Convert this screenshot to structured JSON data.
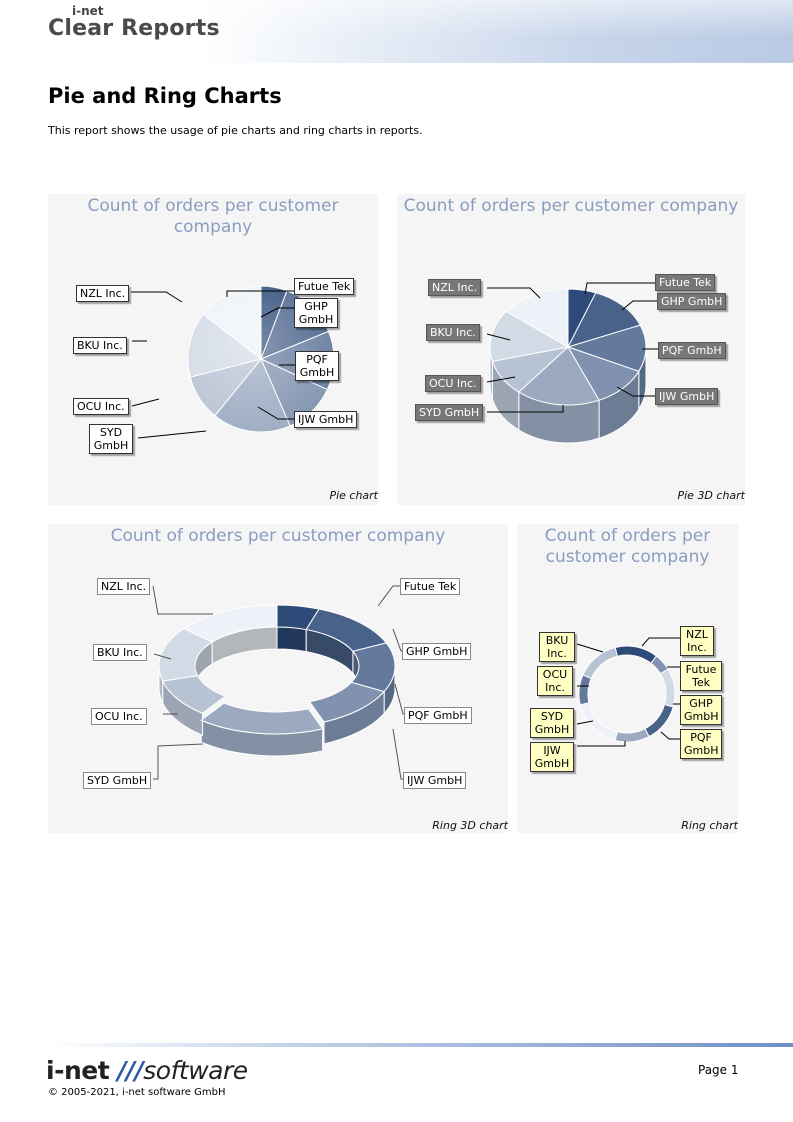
{
  "header": {
    "logo_small": "i-net",
    "logo_big": "Clear Reports"
  },
  "page": {
    "title": "Pie and Ring Charts",
    "description": "This report shows the usage of pie charts and ring charts in reports."
  },
  "chart_data": [
    {
      "type": "pie",
      "title": "Count of orders per customer company",
      "caption": "Pie chart",
      "labels": {
        "futue": "Futue Tek",
        "ghp": "GHP GmbH",
        "pqf": "PQF GmbH",
        "ijw": "IJW GmbH",
        "syd": "SYD GmbH",
        "ocu": "OCU Inc.",
        "bku": "BKU Inc.",
        "nzl": "NZL Inc."
      },
      "categories": [
        "Futue Tek",
        "GHP GmbH",
        "PQF GmbH",
        "IJW GmbH",
        "SYD GmbH",
        "OCU Inc.",
        "BKU Inc.",
        "NZL Inc."
      ],
      "values": [
        4,
        9,
        9,
        8,
        12,
        7,
        10,
        10
      ]
    },
    {
      "type": "pie",
      "title": "Count of orders per customer company",
      "caption": "Pie 3D chart",
      "labels": {
        "futue": "Futue Tek",
        "ghp": "GHP GmbH",
        "pqf": "PQF GmbH",
        "ijw": "IJW GmbH",
        "syd": "SYD GmbH",
        "ocu": "OCU Inc.",
        "bku": "BKU Inc.",
        "nzl": "NZL Inc."
      },
      "categories": [
        "Futue Tek",
        "GHP GmbH",
        "PQF GmbH",
        "IJW GmbH",
        "SYD GmbH",
        "OCU Inc.",
        "BKU Inc.",
        "NZL Inc."
      ],
      "values": [
        4,
        9,
        9,
        8,
        12,
        7,
        10,
        10
      ]
    },
    {
      "type": "ring",
      "title": "Count of orders per customer company",
      "caption": "Ring 3D chart",
      "labels": {
        "futue": "Futue Tek",
        "ghp": "GHP GmbH",
        "pqf": "PQF GmbH",
        "ijw": "IJW GmbH",
        "syd": "SYD GmbH",
        "ocu": "OCU Inc.",
        "bku": "BKU Inc.",
        "nzl": "NZL Inc."
      },
      "categories": [
        "Futue Tek",
        "GHP GmbH",
        "PQF GmbH",
        "IJW GmbH",
        "SYD GmbH",
        "OCU Inc.",
        "BKU Inc.",
        "NZL Inc."
      ],
      "values": [
        4,
        9,
        9,
        8,
        12,
        7,
        10,
        10
      ]
    },
    {
      "type": "ring",
      "title": "Count of orders per customer company",
      "caption": "Ring chart",
      "labels": {
        "futue": "Futue Tek",
        "ghp": "GHP GmbH",
        "pqf": "PQF GmbH",
        "ijw": "IJW GmbH",
        "syd": "SYD GmbH",
        "ocu": "OCU Inc.",
        "bku": "BKU Inc.",
        "nzl": "NZL Inc."
      },
      "categories": [
        "NZL Inc.",
        "Futue Tek",
        "GHP GmbH",
        "PQF GmbH",
        "IJW GmbH",
        "SYD GmbH",
        "OCU Inc.",
        "BKU Inc."
      ],
      "values": [
        10,
        4,
        9,
        9,
        8,
        12,
        7,
        10
      ]
    }
  ],
  "footer": {
    "logo_a": "i-net ",
    "logo_slash": "///",
    "logo_b": "software",
    "copyright": "© 2005-2021, i-net software GmbH",
    "page_label": "Page 1"
  },
  "colors": {
    "panel_bg": "#f5f5f5",
    "title_color": "#8a9dc0",
    "dark_slice": "#2d4a78",
    "light_slice": "#eef2f8",
    "callout_dark": "#777777",
    "callout_yellow": "#ffffc4"
  }
}
